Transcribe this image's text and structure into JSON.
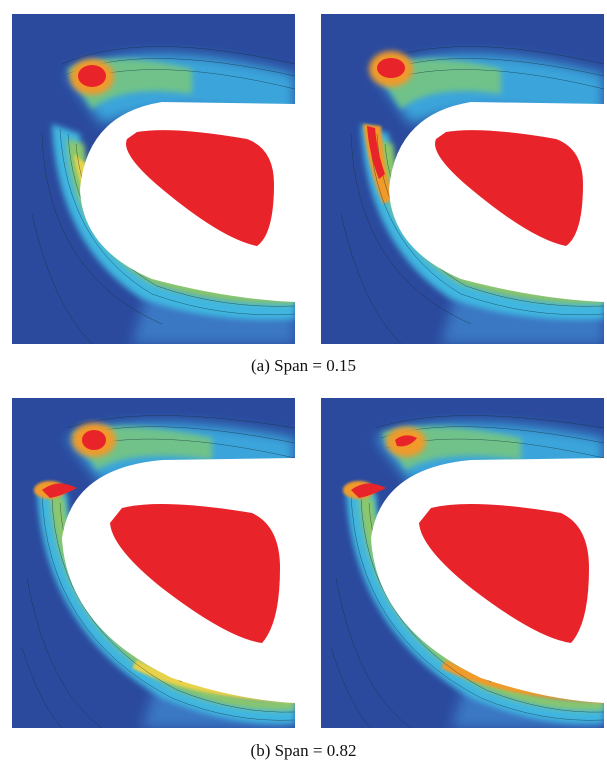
{
  "figure": {
    "captions": {
      "a": "(a)  Span  =  0.15",
      "b": "(b)  Span  =  0.82"
    },
    "colors": {
      "background_blue": "#2b4a9e",
      "mid_blue": "#3a7fc8",
      "cyan": "#3fb6e0",
      "green": "#6fc28a",
      "yellow": "#e8d24a",
      "orange": "#f09a2a",
      "red": "#e8232a",
      "blade": "#ffffff"
    }
  }
}
